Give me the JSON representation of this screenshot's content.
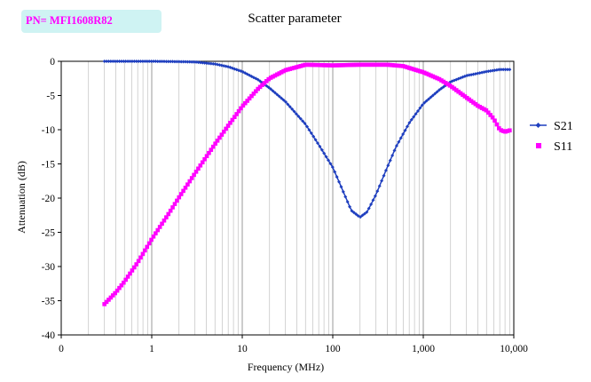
{
  "badge": {
    "text": "PN= MFI1608R82"
  },
  "chart_data": {
    "type": "scatter",
    "title": "Scatter parameter",
    "xlabel": "Frequency (MHz)",
    "ylabel": "Attenuation (dB)",
    "x_scale": "log",
    "xlim": [
      0.1,
      10000
    ],
    "ylim": [
      -40,
      0
    ],
    "x_ticks": [
      {
        "value": 0.1,
        "label": "0"
      },
      {
        "value": 1,
        "label": "1"
      },
      {
        "value": 10,
        "label": "10"
      },
      {
        "value": 100,
        "label": "100"
      },
      {
        "value": 1000,
        "label": "1,000"
      },
      {
        "value": 10000,
        "label": "10,000"
      }
    ],
    "y_ticks": [
      0,
      -5,
      -10,
      -15,
      -20,
      -25,
      -30,
      -35,
      -40
    ],
    "grid": "vertical-minor",
    "legend_position": "right",
    "series": [
      {
        "name": "S21",
        "color": "#1f3fbf",
        "marker": "diamond-line",
        "points": [
          [
            0.3,
            0
          ],
          [
            1,
            0
          ],
          [
            2,
            -0.05
          ],
          [
            3,
            -0.1
          ],
          [
            5,
            -0.4
          ],
          [
            7,
            -0.8
          ],
          [
            10,
            -1.5
          ],
          [
            15,
            -2.7
          ],
          [
            20,
            -3.9
          ],
          [
            30,
            -5.9
          ],
          [
            50,
            -9.2
          ],
          [
            70,
            -12.2
          ],
          [
            100,
            -15.5
          ],
          [
            130,
            -19
          ],
          [
            160,
            -21.8
          ],
          [
            200,
            -22.8
          ],
          [
            240,
            -22
          ],
          [
            300,
            -19.5
          ],
          [
            400,
            -15.5
          ],
          [
            500,
            -12.5
          ],
          [
            700,
            -9
          ],
          [
            1000,
            -6.2
          ],
          [
            1500,
            -4.2
          ],
          [
            2000,
            -3
          ],
          [
            3000,
            -2.1
          ],
          [
            5000,
            -1.5
          ],
          [
            7000,
            -1.2
          ],
          [
            9000,
            -1.2
          ]
        ]
      },
      {
        "name": "S11",
        "color": "#ff00ff",
        "marker": "square",
        "points": [
          [
            0.3,
            -35.5
          ],
          [
            0.4,
            -33.8
          ],
          [
            0.5,
            -32.2
          ],
          [
            0.7,
            -29.4
          ],
          [
            1,
            -26
          ],
          [
            1.5,
            -22.5
          ],
          [
            2,
            -19.9
          ],
          [
            3,
            -16.4
          ],
          [
            5,
            -12.1
          ],
          [
            7,
            -9.4
          ],
          [
            10,
            -6.6
          ],
          [
            15,
            -4
          ],
          [
            20,
            -2.5
          ],
          [
            30,
            -1.3
          ],
          [
            50,
            -0.5
          ],
          [
            100,
            -0.6
          ],
          [
            200,
            -0.5
          ],
          [
            400,
            -0.5
          ],
          [
            600,
            -0.7
          ],
          [
            1000,
            -1.6
          ],
          [
            1500,
            -2.6
          ],
          [
            2000,
            -3.6
          ],
          [
            3000,
            -5.3
          ],
          [
            4000,
            -6.5
          ],
          [
            5000,
            -7.2
          ],
          [
            6000,
            -8.4
          ],
          [
            7000,
            -10
          ],
          [
            8000,
            -10.3
          ],
          [
            9000,
            -10.1
          ]
        ]
      }
    ]
  }
}
